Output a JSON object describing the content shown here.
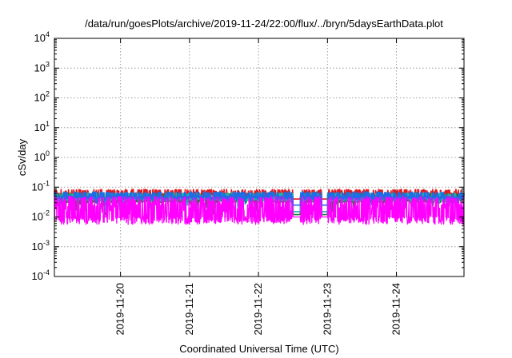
{
  "chart_data": {
    "type": "line",
    "title": "/data/run/goesPlots/archive/2019-11-24/22:00/flux/../bryn/5daysEarthData.plot",
    "xlabel": "Coordinated Universal Time (UTC)",
    "ylabel": "cSv/day",
    "yscale": "log",
    "ylim": [
      0.0001,
      10000
    ],
    "y_ticks": [
      {
        "base": "10",
        "exp": "-4",
        "value": 0.0001
      },
      {
        "base": "10",
        "exp": "-3",
        "value": 0.001
      },
      {
        "base": "10",
        "exp": "-2",
        "value": 0.01
      },
      {
        "base": "10",
        "exp": "-1",
        "value": 0.1
      },
      {
        "base": "10",
        "exp": "0",
        "value": 1
      },
      {
        "base": "10",
        "exp": "1",
        "value": 10
      },
      {
        "base": "10",
        "exp": "2",
        "value": 100
      },
      {
        "base": "10",
        "exp": "3",
        "value": 1000
      },
      {
        "base": "10",
        "exp": "4",
        "value": 10000
      }
    ],
    "xlim": [
      "2019-11-19 01:00",
      "2019-11-24 23:30"
    ],
    "x_ticks": [
      "2019-11-20",
      "2019-11-21",
      "2019-11-22",
      "2019-11-23",
      "2019-11-24"
    ],
    "grid": true,
    "legend": "none",
    "gaps": [
      [
        "2019-11-19 18:30",
        "2019-11-19 19:00"
      ],
      [
        "2019-11-22 12:00",
        "2019-11-22 14:30"
      ],
      [
        "2019-11-22 22:00",
        "2019-11-23 00:00"
      ]
    ],
    "series": [
      {
        "color": "#e41a1c",
        "baseline": 0.055,
        "spike_max": 0.085,
        "spike_min": 0.04,
        "in_gap": 0.04
      },
      {
        "color": "#1b7a2e",
        "baseline": 0.035,
        "spike_max": 0.06,
        "spike_min": 0.012,
        "in_gap": 0.012
      },
      {
        "color": "#1fb0ad",
        "baseline": 0.04,
        "spike_max": 0.065,
        "spike_min": 0.015,
        "in_gap": 0.015
      },
      {
        "color": "#1d6ee5",
        "baseline": 0.045,
        "spike_max": 0.07,
        "spike_min": 0.025,
        "in_gap": 0.025
      },
      {
        "color": "#ff00ff",
        "baseline": 0.008,
        "spike_max": 0.05,
        "spike_min": 0.005,
        "in_gap": 0.01
      }
    ]
  }
}
